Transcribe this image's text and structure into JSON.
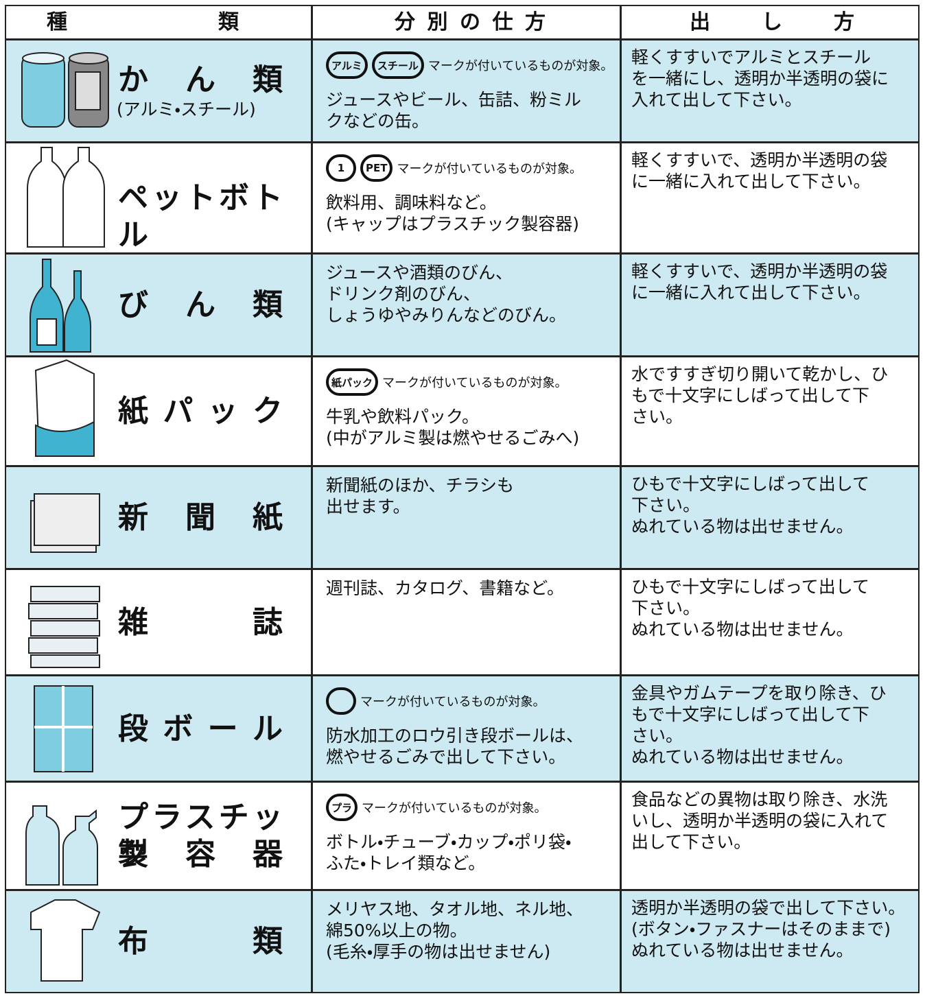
{
  "header": [
    "種類",
    "分別の仕方",
    "出し方"
  ],
  "rows": [
    {
      "name": [
        "かん類"
      ],
      "sub": "(アルミ・スチール)",
      "marks": [
        "アルミ",
        "スチール"
      ],
      "mark_note": "マークが付いているものが対象。",
      "sort": [
        "ジュースやビール、缶詰、粉ミル",
        "クなどの缶。"
      ],
      "method": [
        "軽くすすいでアルミとスチール",
        "を一緒にし、透明か半透明の袋に",
        "入れて出して下さい。"
      ]
    },
    {
      "name": [
        "ペットボトル"
      ],
      "marks": [
        "1",
        "PET"
      ],
      "mark_note": "マークが付いているものが対象。",
      "sort": [
        "飲料用、調味料など。",
        "(キャップはプラスチック製容器)"
      ],
      "method": [
        "軽くすすいで、透明か半透明の袋",
        "に一緒に入れて出して下さい。"
      ]
    },
    {
      "name": [
        "びん類"
      ],
      "sort": [
        "ジュースや酒類のびん、",
        "ドリンク剤のびん、",
        "しょうゆやみりんなどのびん。"
      ],
      "method": [
        "軽くすすいで、透明か半透明の袋",
        "に一緒に入れて出して下さい。"
      ]
    },
    {
      "name": [
        "紙パック"
      ],
      "marks": [
        "紙パック"
      ],
      "mark_note": "マークが付いているものが対象。",
      "sort": [
        "牛乳や飲料パック。",
        "(中がアルミ製は燃やせるごみへ)"
      ],
      "method": [
        "水ですすぎ切り開いて乾かし、ひ",
        "もで十文字にしばって出して下",
        "さい。"
      ]
    },
    {
      "name": [
        "新聞紙"
      ],
      "sort": [
        "新聞紙のほか、チラシも",
        "出せます。"
      ],
      "method": [
        "ひもで十文字にしばって出して",
        "下さい。",
        "ぬれている物は出せません。"
      ]
    },
    {
      "name": [
        "雑誌"
      ],
      "sort": [
        "週刊誌、カタログ、書籍など。"
      ],
      "method": [
        "ひもで十文字にしばって出して",
        "下さい。",
        "ぬれている物は出せません。"
      ]
    },
    {
      "name": [
        "段ボール"
      ],
      "marks": [],
      "mark_note": "マークが付いているものが対象。",
      "sort": [
        "防水加工のロウ引き段ボールは、",
        "燃やせるごみで出して下さい。"
      ],
      "method": [
        "金具やガムテープを取り除き、ひ",
        "もで十文字にしばって出して下",
        "さい。",
        "ぬれている物は出せません。"
      ]
    },
    {
      "name": [
        "プラスチック",
        "製容器"
      ],
      "marks": [
        "プラ"
      ],
      "mark_note": "マークが付いているものが対象。",
      "sort": [
        "ボトル・チューブ・カップ・ポリ袋・",
        "ふた・トレイ類など。"
      ],
      "method": [
        "食品などの異物は取り除き、水洗",
        "いし、透明か半透明の袋に入れて",
        "出して下さい。"
      ]
    },
    {
      "name": [
        "布類"
      ],
      "sort": [
        "メリヤス地、タオル地、ネル地、",
        "綿50%以上の物。",
        "(毛糸・厚手の物は出せません)"
      ],
      "method": [
        "透明か半透明の袋で出して下さい。",
        "(ボタン・ファスナーはそのままで)",
        "ぬれている物は出せません。"
      ]
    }
  ]
}
